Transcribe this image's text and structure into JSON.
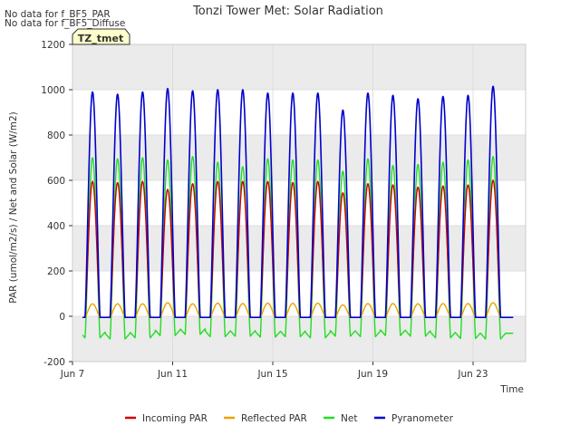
{
  "chart_data": {
    "type": "line",
    "title": "Tonzi Tower Met: Solar Radiation",
    "notes": [
      "No data for f_BF5_PAR",
      "No data for f_BF5_Diffuse"
    ],
    "badge": "TZ_tmet",
    "xlabel": "Time",
    "ylabel": "PAR (umol/m2/s) / Net and Solar (W/m2)",
    "ylim": [
      -200,
      1200
    ],
    "yticks": [
      -200,
      0,
      200,
      400,
      600,
      800,
      1000,
      1200
    ],
    "xlim": [
      7,
      25.1
    ],
    "xticks": [
      {
        "label": "Jun 7",
        "day": 7
      },
      {
        "label": "Jun 11",
        "day": 11
      },
      {
        "label": "Jun 15",
        "day": 15
      },
      {
        "label": "Jun 19",
        "day": 19
      },
      {
        "label": "Jun 23",
        "day": 23
      }
    ],
    "start_day": 7.4,
    "end_day": 24.6,
    "peaks": {
      "days": [
        7.8,
        8.8,
        9.8,
        10.8,
        11.8,
        12.8,
        13.8,
        14.8,
        15.8,
        16.8,
        17.8,
        18.8,
        19.8,
        20.8,
        21.8,
        22.8,
        23.8
      ],
      "Pyranometer": [
        990,
        980,
        990,
        1005,
        995,
        1000,
        1000,
        985,
        985,
        985,
        910,
        985,
        975,
        960,
        970,
        975,
        1015
      ],
      "Incoming PAR": [
        595,
        590,
        595,
        560,
        585,
        595,
        595,
        595,
        590,
        595,
        545,
        585,
        580,
        570,
        575,
        580,
        600
      ],
      "Reflected PAR": [
        55,
        55,
        55,
        60,
        55,
        58,
        56,
        58,
        57,
        58,
        50,
        56,
        56,
        55,
        56,
        56,
        60
      ],
      "Net": [
        700,
        695,
        700,
        690,
        705,
        680,
        660,
        695,
        690,
        690,
        640,
        695,
        665,
        670,
        680,
        690,
        705
      ],
      "Net_night": [
        -95,
        -100,
        -95,
        -85,
        -80,
        -90,
        -88,
        -92,
        -90,
        -95,
        -88,
        -90,
        -85,
        -88,
        -95,
        -98,
        -100
      ]
    },
    "legend_position": "bottom",
    "series": [
      {
        "name": "Incoming PAR",
        "color": "#cc0000"
      },
      {
        "name": "Reflected PAR",
        "color": "#f0a000"
      },
      {
        "name": "Net",
        "color": "#22dd22"
      },
      {
        "name": "Pyranometer",
        "color": "#0000cc"
      }
    ],
    "band_color": "#ebebeb",
    "grid_color": "#d9d9d9"
  }
}
